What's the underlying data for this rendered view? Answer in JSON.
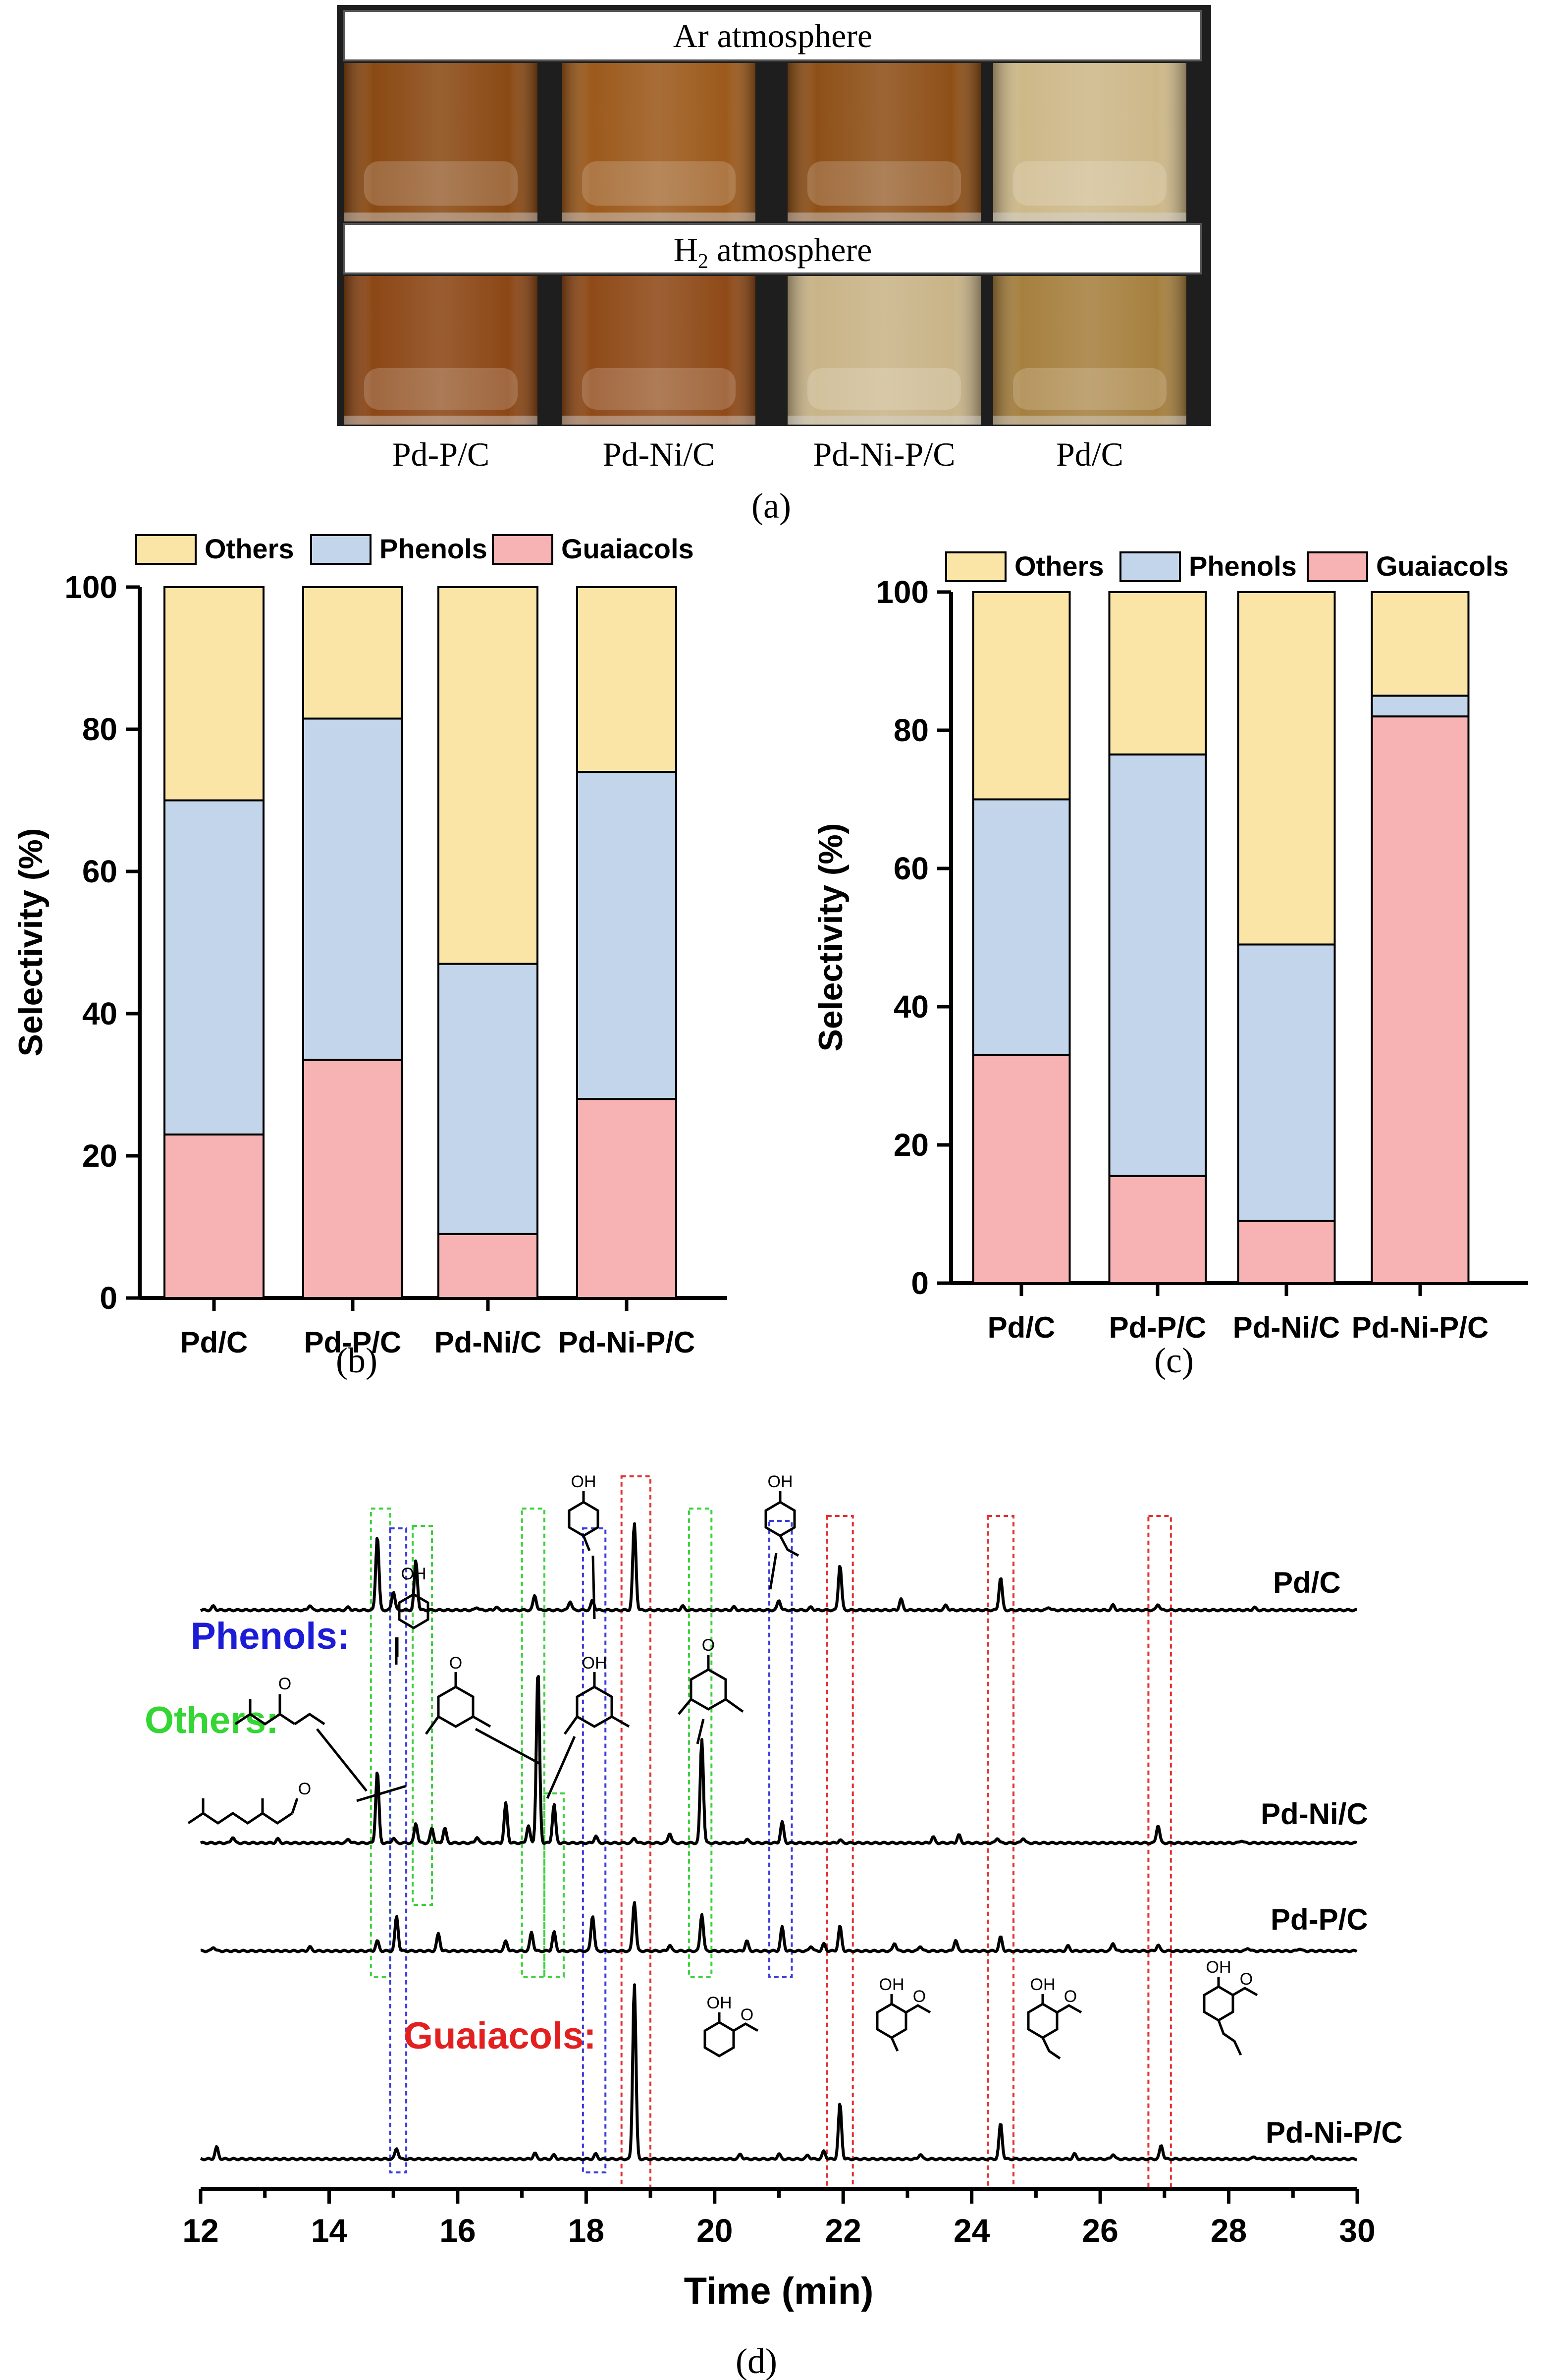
{
  "panel_a": {
    "label": "(a)",
    "rows": [
      {
        "title_main": "Ar atmosphere",
        "title_sub": ""
      },
      {
        "title_main": "H",
        "title_sub": "2",
        "title_rest": " atmosphere"
      }
    ],
    "catalysts": [
      "Pd-P/C",
      "Pd-Ni/C",
      "Pd-Ni-P/C",
      "Pd/C"
    ],
    "vial_colors": {
      "ar": [
        "#8a4a14",
        "#9c5a1c",
        "#8e5018",
        "#cdb889"
      ],
      "h2": [
        "#8c4716",
        "#8f4a18",
        "#c9b488",
        "#a6803f"
      ]
    }
  },
  "panel_b_label": "(b)",
  "panel_c_label": "(c)",
  "panel_d_label": "(d)",
  "colors": {
    "others": "#fbe5a6",
    "phenols": "#c3d5ea",
    "guaiacols": "#f7b3b3"
  },
  "chart_data": [
    {
      "type": "bar",
      "stacked": true,
      "panel": "b",
      "categories": [
        "Pd/C",
        "Pd-P/C",
        "Pd-Ni/C",
        "Pd-Ni-P/C"
      ],
      "series": [
        {
          "name": "Guaiacols",
          "values": [
            23,
            33.5,
            9,
            28
          ]
        },
        {
          "name": "Phenols",
          "values": [
            47,
            48,
            38,
            46
          ]
        },
        {
          "name": "Others",
          "values": [
            30,
            18.5,
            53,
            26
          ]
        }
      ],
      "legend": [
        "Others",
        "Phenols",
        "Guaiacols"
      ],
      "ylabel": "Selectivity (%)",
      "xlabel": "",
      "ylim": [
        0,
        100
      ],
      "yticks": [
        "0",
        "20",
        "40",
        "60",
        "80",
        "100"
      ]
    },
    {
      "type": "bar",
      "stacked": true,
      "panel": "c",
      "categories": [
        "Pd/C",
        "Pd-P/C",
        "Pd-Ni/C",
        "Pd-Ni-P/C"
      ],
      "series": [
        {
          "name": "Guaiacols",
          "values": [
            33,
            15.5,
            9,
            82
          ]
        },
        {
          "name": "Phenols",
          "values": [
            37,
            61,
            40,
            3
          ]
        },
        {
          "name": "Others",
          "values": [
            30,
            23.5,
            51,
            15
          ]
        }
      ],
      "legend": [
        "Others",
        "Phenols",
        "Guaiacols"
      ],
      "ylabel": "Selectivity (%)",
      "xlabel": "",
      "ylim": [
        0,
        100
      ],
      "yticks": [
        "0",
        "20",
        "40",
        "60",
        "80",
        "100"
      ]
    },
    {
      "type": "line",
      "panel": "d",
      "xlabel": "Time (min)",
      "xlim": [
        12,
        30
      ],
      "xticks": [
        "12",
        "14",
        "16",
        "18",
        "20",
        "22",
        "24",
        "26",
        "28",
        "30"
      ],
      "group_labels": {
        "phenols": "Phenols:",
        "others": "Others:",
        "guaiacols": "Guaiacols:"
      },
      "series": [
        {
          "name": "Pd/C",
          "peaks": [
            [
              12.2,
              8
            ],
            [
              13.7,
              10
            ],
            [
              14.3,
              6
            ],
            [
              14.75,
              150
            ],
            [
              15.0,
              38
            ],
            [
              15.35,
              100
            ],
            [
              16.3,
              6
            ],
            [
              16.6,
              6
            ],
            [
              17.2,
              30
            ],
            [
              17.75,
              18
            ],
            [
              18.1,
              20
            ],
            [
              18.75,
              175
            ],
            [
              19.5,
              8
            ],
            [
              20.3,
              6
            ],
            [
              21.0,
              20
            ],
            [
              21.5,
              6
            ],
            [
              21.95,
              92
            ],
            [
              22.9,
              22
            ],
            [
              23.6,
              10
            ],
            [
              24.45,
              66
            ],
            [
              25.2,
              6
            ],
            [
              26.2,
              10
            ],
            [
              26.9,
              12
            ],
            [
              28.4,
              5
            ]
          ]
        },
        {
          "name": "Pd-Ni/C",
          "peaks": [
            [
              12.5,
              12
            ],
            [
              13.2,
              8
            ],
            [
              14.3,
              8
            ],
            [
              14.75,
              145
            ],
            [
              15.0,
              10
            ],
            [
              15.35,
              40
            ],
            [
              15.6,
              30
            ],
            [
              15.8,
              30
            ],
            [
              16.3,
              12
            ],
            [
              16.75,
              80
            ],
            [
              17.1,
              35
            ],
            [
              17.25,
              350
            ],
            [
              17.5,
              78
            ],
            [
              18.15,
              14
            ],
            [
              18.75,
              10
            ],
            [
              19.3,
              20
            ],
            [
              19.8,
              210
            ],
            [
              20.5,
              8
            ],
            [
              21.05,
              42
            ],
            [
              21.95,
              6
            ],
            [
              23.4,
              12
            ],
            [
              23.8,
              16
            ],
            [
              24.4,
              10
            ],
            [
              24.8,
              10
            ],
            [
              26.9,
              36
            ],
            [
              28.2,
              5
            ]
          ]
        },
        {
          "name": "Pd-P/C",
          "peaks": [
            [
              12.2,
              8
            ],
            [
              13.7,
              8
            ],
            [
              14.75,
              20
            ],
            [
              15.05,
              70
            ],
            [
              15.7,
              35
            ],
            [
              16.75,
              20
            ],
            [
              17.15,
              38
            ],
            [
              17.5,
              38
            ],
            [
              18.1,
              72
            ],
            [
              18.75,
              100
            ],
            [
              19.3,
              12
            ],
            [
              19.8,
              75
            ],
            [
              20.5,
              20
            ],
            [
              21.05,
              48
            ],
            [
              21.5,
              10
            ],
            [
              21.7,
              14
            ],
            [
              21.95,
              50
            ],
            [
              22.8,
              16
            ],
            [
              23.2,
              10
            ],
            [
              23.75,
              22
            ],
            [
              24.45,
              28
            ],
            [
              25.5,
              10
            ],
            [
              26.2,
              16
            ],
            [
              26.9,
              12
            ],
            [
              28.3,
              6
            ],
            [
              29.1,
              5
            ]
          ]
        },
        {
          "name": "Pd-Ni-P/C",
          "peaks": [
            [
              12.25,
              24
            ],
            [
              15.05,
              22
            ],
            [
              17.2,
              12
            ],
            [
              17.5,
              8
            ],
            [
              18.15,
              10
            ],
            [
              18.75,
              355
            ],
            [
              20.4,
              10
            ],
            [
              21.0,
              10
            ],
            [
              21.45,
              8
            ],
            [
              21.7,
              16
            ],
            [
              21.95,
              112
            ],
            [
              23.2,
              10
            ],
            [
              24.45,
              72
            ],
            [
              25.6,
              10
            ],
            [
              26.2,
              10
            ],
            [
              26.95,
              28
            ],
            [
              28.4,
              5
            ],
            [
              29.3,
              5
            ]
          ]
        }
      ],
      "highlight_boxes": [
        {
          "group": "others",
          "x": [
            14.65,
            14.95
          ]
        },
        {
          "group": "others",
          "x": [
            15.3,
            15.6
          ]
        },
        {
          "group": "others",
          "x": [
            17.0,
            17.35
          ]
        },
        {
          "group": "others",
          "x": [
            17.35,
            17.65
          ]
        },
        {
          "group": "others",
          "x": [
            19.6,
            19.95
          ]
        },
        {
          "group": "phenols",
          "x": [
            14.95,
            15.2
          ]
        },
        {
          "group": "phenols",
          "x": [
            17.95,
            18.3
          ]
        },
        {
          "group": "phenols",
          "x": [
            20.85,
            21.2
          ]
        },
        {
          "group": "guaiacols",
          "x": [
            18.55,
            19.0
          ]
        },
        {
          "group": "guaiacols",
          "x": [
            21.75,
            22.15
          ]
        },
        {
          "group": "guaiacols",
          "x": [
            24.25,
            24.65
          ]
        },
        {
          "group": "guaiacols",
          "x": [
            26.75,
            27.1
          ]
        }
      ],
      "molecule_labels": {
        "oh": "OH",
        "o": "O"
      }
    }
  ]
}
